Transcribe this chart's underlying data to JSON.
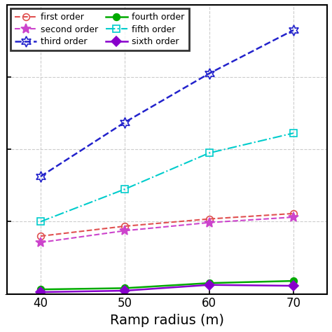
{
  "x": [
    40,
    50,
    60,
    70
  ],
  "series_order": [
    "first order",
    "second order",
    "third order",
    "fourth order",
    "fifth order",
    "sixth order"
  ],
  "series_data": {
    "first order": [
      3.2,
      3.75,
      4.15,
      4.45
    ],
    "second order": [
      2.85,
      3.5,
      3.95,
      4.25
    ],
    "third order": [
      6.5,
      9.5,
      12.2,
      14.6
    ],
    "fourth order": [
      0.25,
      0.32,
      0.6,
      0.72
    ],
    "fifth order": [
      4.0,
      5.8,
      7.8,
      8.9
    ],
    "sixth order": [
      0.1,
      0.18,
      0.5,
      0.45
    ]
  },
  "series_style": {
    "first order": {
      "color": "#e05050",
      "linestyle": "--",
      "marker": "o",
      "mfc": "none",
      "ms": 7,
      "lw": 1.5
    },
    "second order": {
      "color": "#cc44cc",
      "linestyle": "--",
      "marker": "*",
      "mfc": "#cc44cc",
      "ms": 10,
      "lw": 1.5
    },
    "third order": {
      "color": "#2222cc",
      "linestyle": "--",
      "marker": "star6",
      "mfc": "none",
      "ms": 11,
      "lw": 1.8
    },
    "fourth order": {
      "color": "#00aa00",
      "linestyle": "-",
      "marker": "o",
      "mfc": "#00aa00",
      "ms": 7,
      "lw": 1.8
    },
    "fifth order": {
      "color": "#00cccc",
      "linestyle": "-.",
      "marker": "s",
      "mfc": "none",
      "ms": 7,
      "lw": 1.5
    },
    "sixth order": {
      "color": "#8800cc",
      "linestyle": "-",
      "marker": "D",
      "mfc": "#8800cc",
      "ms": 7,
      "lw": 1.8
    }
  },
  "legend_order": [
    "first order",
    "second order",
    "third order",
    "fourth order",
    "fifth order",
    "sixth order"
  ],
  "xlabel": "Ramp radius (m)",
  "xlabel_fontsize": 14,
  "xlim": [
    36,
    74
  ],
  "xticks": [
    40,
    50,
    60,
    70
  ],
  "xtick_fontsize": 12,
  "ylim": [
    0,
    16
  ],
  "yticks": [],
  "grid_color": "#cccccc",
  "grid_linestyle": "--",
  "grid_lw": 0.8
}
